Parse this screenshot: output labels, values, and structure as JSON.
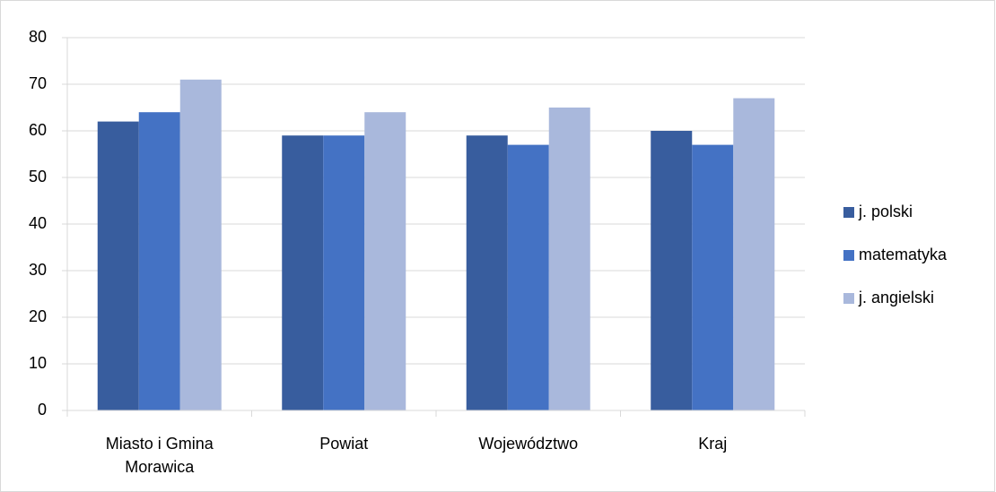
{
  "chart_data": {
    "type": "bar",
    "categories": [
      "Miasto i Gmina Morawica",
      "Powiat",
      "Województwo",
      "Kraj"
    ],
    "series": [
      {
        "name": "j. polski",
        "color": "#385d9e",
        "values": [
          62,
          59,
          59,
          60
        ]
      },
      {
        "name": "matematyka",
        "color": "#4472c4",
        "values": [
          64,
          59,
          57,
          57
        ]
      },
      {
        "name": "j. angielski",
        "color": "#a9b8dc",
        "values": [
          71,
          64,
          65,
          67
        ]
      }
    ],
    "ylim": [
      0,
      80
    ],
    "yticks": [
      0,
      10,
      20,
      30,
      40,
      50,
      60,
      70,
      80
    ],
    "grid": true,
    "legend": "right"
  }
}
